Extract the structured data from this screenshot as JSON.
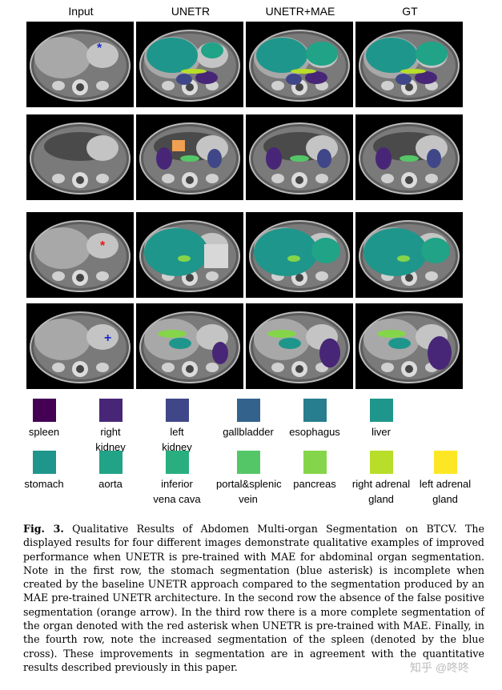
{
  "columns": [
    "Input",
    "UNETR",
    "UNETR+MAE",
    "GT"
  ],
  "markers": [
    {
      "row": 0,
      "symbol": "*",
      "color": "#1a2ccc"
    },
    {
      "row": 2,
      "symbol": "*",
      "color": "#e01818"
    },
    {
      "row": 3,
      "symbol": "+",
      "color": "#1a2ccc"
    }
  ],
  "legend": [
    {
      "label": "spleen",
      "color": "#440154"
    },
    {
      "label": "right\nkidney",
      "color": "#482677"
    },
    {
      "label": "left\nkidney",
      "color": "#404788"
    },
    {
      "label": "gallbladder",
      "color": "#33638d"
    },
    {
      "label": "esophagus",
      "color": "#287d8e"
    },
    {
      "label": "liver",
      "color": "#1f968b"
    },
    {
      "label": "stomach",
      "color": "#1f968b"
    },
    {
      "label": "aorta",
      "color": "#20a386"
    },
    {
      "label": "inferior\nvena cava",
      "color": "#29af7f"
    },
    {
      "label": "portal&splenic\nvein",
      "color": "#55c667"
    },
    {
      "label": "pancreas",
      "color": "#85d54a"
    },
    {
      "label": "right adrenal\ngland",
      "color": "#b8de29"
    },
    {
      "label": "left adrenal\ngland",
      "color": "#fde725"
    }
  ],
  "caption": {
    "label": "Fig. 3.",
    "text": "Qualitative Results of Abdomen Multi-organ Segmentation on BTCV. The displayed results for four different images demonstrate qualitative examples of improved performance when UNETR is pre-trained with MAE for abdominal organ segmentation. Note in the first row, the stomach segmentation (blue asterisk) is incomplete when created by the baseline UNETR approach compared to the segmentation produced by an MAE pre-trained UNETR architecture. In the second row the absence of the false positive segmentation (orange arrow). In the third row there is a more complete segmentation of the organ denoted with the red asterisk when UNETR is pre-trained with MAE. Finally, in the fourth row, note the increased segmentation of the spleen (denoted by the blue cross). These improvements in segmentation are in agreement with the quantitative results described previously in this paper."
  },
  "watermark": "知乎 @咚咚"
}
